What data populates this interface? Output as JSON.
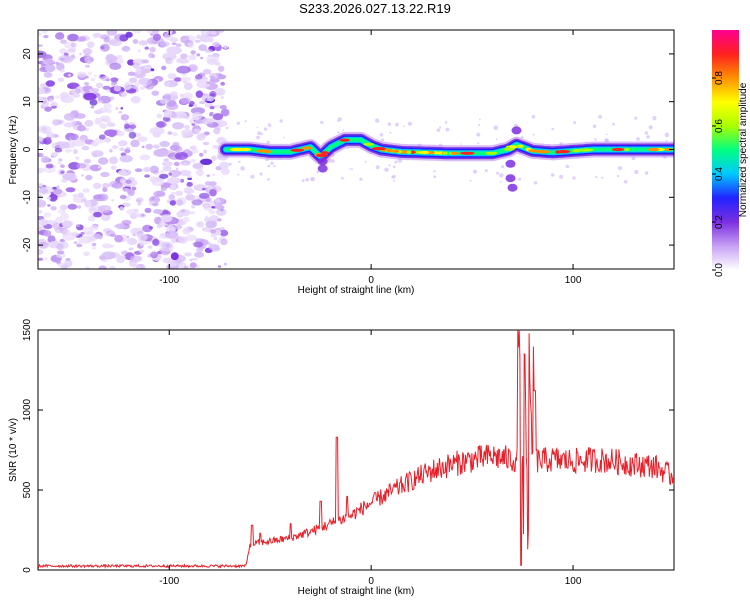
{
  "title": "S233.2026.027.13.22.R19",
  "chart_data": [
    {
      "type": "heatmap",
      "name": "spectrogram",
      "xlabel": "Height of straight line (km)",
      "ylabel": "Frequency (Hz)",
      "xlim": [
        -165,
        150
      ],
      "ylim": [
        -25,
        25
      ],
      "xticks": [
        -100,
        0,
        100
      ],
      "yticks": [
        20,
        10,
        0,
        -10,
        -20
      ],
      "noise_region_x": [
        -165,
        -72
      ],
      "signal_track": [
        {
          "x": -72,
          "f": 0.0
        },
        {
          "x": -60,
          "f": 0.0
        },
        {
          "x": -50,
          "f": -0.5
        },
        {
          "x": -40,
          "f": -0.5
        },
        {
          "x": -30,
          "f": 0.5
        },
        {
          "x": -25,
          "f": -1.5
        },
        {
          "x": -20,
          "f": 0.5
        },
        {
          "x": -13,
          "f": 2.0
        },
        {
          "x": -5,
          "f": 2.0
        },
        {
          "x": 0,
          "f": 0.8
        },
        {
          "x": 5,
          "f": 0.0
        },
        {
          "x": 15,
          "f": -0.5
        },
        {
          "x": 40,
          "f": -0.8
        },
        {
          "x": 60,
          "f": -0.8
        },
        {
          "x": 68,
          "f": 0.0
        },
        {
          "x": 72,
          "f": 1.0
        },
        {
          "x": 80,
          "f": -0.3
        },
        {
          "x": 90,
          "f": -0.6
        },
        {
          "x": 110,
          "f": 0.0
        },
        {
          "x": 150,
          "f": 0.0
        }
      ],
      "colorbar": {
        "label": "Normalized spectral amplitude",
        "range": [
          0,
          1
        ],
        "ticks": [
          "0.0",
          "0.2",
          "0.4",
          "0.6",
          "0.8"
        ],
        "colors": [
          "#ffffff",
          "#c7a0f5",
          "#7b2fe0",
          "#2222ff",
          "#00c8ff",
          "#00ff80",
          "#aaff00",
          "#ffff00",
          "#ff9000",
          "#ff2020",
          "#ff0090"
        ]
      }
    },
    {
      "type": "line",
      "name": "snr",
      "xlabel": "Height of straight line (km)",
      "ylabel": "SNR (10 * v/v)",
      "xlim": [
        -165,
        150
      ],
      "ylim": [
        0,
        1500
      ],
      "xticks": [
        -100,
        0,
        100
      ],
      "yticks": [
        0,
        500,
        1000,
        1500
      ],
      "color": "#e8202a",
      "envelope": [
        {
          "x": -165,
          "y": 25
        },
        {
          "x": -62,
          "y": 25
        },
        {
          "x": -60,
          "y": 160
        },
        {
          "x": -50,
          "y": 180
        },
        {
          "x": -40,
          "y": 200
        },
        {
          "x": -30,
          "y": 240
        },
        {
          "x": -20,
          "y": 290
        },
        {
          "x": -10,
          "y": 340
        },
        {
          "x": 0,
          "y": 420
        },
        {
          "x": 10,
          "y": 490
        },
        {
          "x": 20,
          "y": 560
        },
        {
          "x": 30,
          "y": 620
        },
        {
          "x": 40,
          "y": 660
        },
        {
          "x": 50,
          "y": 690
        },
        {
          "x": 60,
          "y": 710
        },
        {
          "x": 70,
          "y": 690
        },
        {
          "x": 80,
          "y": 680
        },
        {
          "x": 90,
          "y": 690
        },
        {
          "x": 100,
          "y": 680
        },
        {
          "x": 110,
          "y": 690
        },
        {
          "x": 120,
          "y": 680
        },
        {
          "x": 130,
          "y": 660
        },
        {
          "x": 140,
          "y": 650
        },
        {
          "x": 150,
          "y": 580
        }
      ],
      "spikes": [
        {
          "x": -59,
          "y": 280
        },
        {
          "x": -55,
          "y": 230
        },
        {
          "x": -40,
          "y": 290
        },
        {
          "x": -25,
          "y": 430
        },
        {
          "x": -17,
          "y": 830
        },
        {
          "x": -12,
          "y": 460
        },
        {
          "x": 73,
          "y": 1500
        },
        {
          "x": 74,
          "y": 30
        },
        {
          "x": 76,
          "y": 1350
        },
        {
          "x": 78,
          "y": 1480
        },
        {
          "x": 79,
          "y": 80
        },
        {
          "x": 81,
          "y": 1120
        }
      ]
    }
  ]
}
